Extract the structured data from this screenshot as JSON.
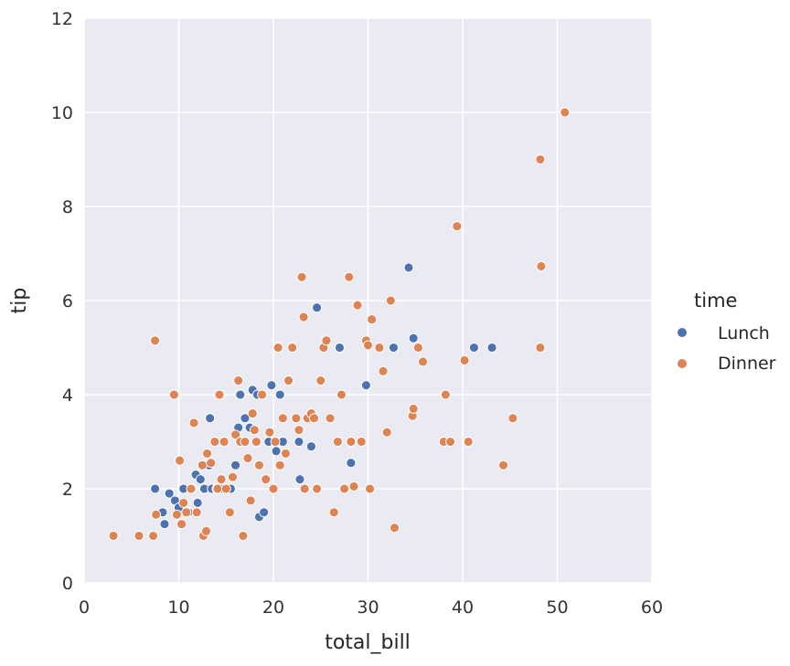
{
  "chart_data": {
    "type": "scatter",
    "xlabel": "total_bill",
    "ylabel": "tip",
    "xlim": [
      0,
      60
    ],
    "ylim": [
      0,
      12
    ],
    "xticks": [
      "0",
      "10",
      "20",
      "30",
      "40",
      "50",
      "60"
    ],
    "yticks": [
      "0",
      "2",
      "4",
      "6",
      "8",
      "10",
      "12"
    ],
    "grid": true,
    "legend": {
      "title": "time",
      "placement": "right",
      "entries": [
        "Lunch",
        "Dinner"
      ]
    },
    "colors": {
      "Lunch": "#4c72b0",
      "Dinner": "#dd8452",
      "plot_background": "#eaeaf2",
      "grid": "#ffffff"
    },
    "series": [
      {
        "name": "Lunch",
        "points": [
          [
            7.5,
            2.0
          ],
          [
            8.3,
            1.5
          ],
          [
            8.5,
            1.25
          ],
          [
            9.0,
            1.9
          ],
          [
            9.6,
            1.75
          ],
          [
            10.0,
            1.6
          ],
          [
            10.5,
            2.0
          ],
          [
            11.0,
            1.5
          ],
          [
            11.4,
            2.0
          ],
          [
            11.8,
            2.3
          ],
          [
            12.0,
            1.7
          ],
          [
            12.3,
            2.2
          ],
          [
            12.7,
            2.0
          ],
          [
            13.2,
            2.5
          ],
          [
            13.3,
            3.5
          ],
          [
            13.5,
            2.0
          ],
          [
            14.0,
            2.0
          ],
          [
            14.7,
            2.0
          ],
          [
            15.5,
            2.0
          ],
          [
            16.0,
            2.5
          ],
          [
            16.3,
            3.3
          ],
          [
            16.5,
            4.0
          ],
          [
            17.0,
            3.5
          ],
          [
            17.5,
            3.3
          ],
          [
            17.8,
            4.1
          ],
          [
            18.3,
            4.0
          ],
          [
            18.5,
            1.4
          ],
          [
            19.0,
            1.5
          ],
          [
            19.5,
            3.0
          ],
          [
            19.8,
            4.2
          ],
          [
            20.3,
            2.8
          ],
          [
            20.7,
            4.0
          ],
          [
            21.0,
            3.0
          ],
          [
            22.7,
            3.0
          ],
          [
            22.8,
            2.2
          ],
          [
            24.0,
            2.9
          ],
          [
            24.6,
            5.85
          ],
          [
            27.0,
            5.0
          ],
          [
            28.2,
            2.55
          ],
          [
            29.8,
            4.2
          ],
          [
            32.7,
            5.0
          ],
          [
            34.3,
            6.7
          ],
          [
            34.8,
            5.2
          ],
          [
            41.2,
            5.0
          ],
          [
            43.1,
            5.0
          ]
        ]
      },
      {
        "name": "Dinner",
        "points": [
          [
            3.1,
            1.0
          ],
          [
            5.8,
            1.0
          ],
          [
            7.3,
            1.0
          ],
          [
            7.5,
            5.15
          ],
          [
            7.6,
            1.45
          ],
          [
            9.5,
            4.0
          ],
          [
            9.8,
            1.45
          ],
          [
            10.1,
            2.6
          ],
          [
            10.3,
            1.25
          ],
          [
            10.5,
            1.7
          ],
          [
            10.8,
            1.5
          ],
          [
            11.3,
            2.0
          ],
          [
            11.6,
            3.4
          ],
          [
            11.9,
            1.5
          ],
          [
            12.5,
            2.5
          ],
          [
            12.6,
            1.0
          ],
          [
            12.9,
            1.1
          ],
          [
            13.0,
            2.75
          ],
          [
            13.4,
            2.55
          ],
          [
            13.8,
            3.0
          ],
          [
            14.1,
            2.0
          ],
          [
            14.3,
            4.0
          ],
          [
            14.5,
            2.2
          ],
          [
            14.8,
            3.0
          ],
          [
            15.0,
            2.0
          ],
          [
            15.4,
            1.5
          ],
          [
            15.7,
            2.25
          ],
          [
            16.0,
            3.15
          ],
          [
            16.3,
            4.3
          ],
          [
            16.5,
            3.0
          ],
          [
            16.8,
            1.0
          ],
          [
            17.0,
            3.0
          ],
          [
            17.3,
            2.65
          ],
          [
            17.6,
            1.75
          ],
          [
            17.8,
            3.6
          ],
          [
            18.0,
            3.25
          ],
          [
            18.2,
            3.0
          ],
          [
            18.5,
            2.5
          ],
          [
            18.8,
            4.0
          ],
          [
            19.2,
            2.2
          ],
          [
            19.6,
            3.2
          ],
          [
            20.0,
            2.0
          ],
          [
            20.2,
            3.0
          ],
          [
            20.5,
            5.0
          ],
          [
            20.7,
            2.5
          ],
          [
            21.0,
            3.5
          ],
          [
            21.3,
            2.75
          ],
          [
            21.6,
            4.3
          ],
          [
            22.0,
            5.0
          ],
          [
            22.4,
            3.5
          ],
          [
            22.7,
            3.25
          ],
          [
            23.0,
            6.5
          ],
          [
            23.2,
            5.65
          ],
          [
            23.3,
            2.0
          ],
          [
            23.6,
            3.5
          ],
          [
            24.0,
            3.6
          ],
          [
            24.3,
            3.5
          ],
          [
            24.6,
            2.0
          ],
          [
            25.0,
            4.3
          ],
          [
            25.3,
            5.0
          ],
          [
            25.6,
            5.15
          ],
          [
            26.0,
            3.5
          ],
          [
            26.4,
            1.5
          ],
          [
            26.8,
            3.0
          ],
          [
            27.2,
            4.0
          ],
          [
            27.5,
            2.0
          ],
          [
            28.0,
            6.5
          ],
          [
            28.2,
            3.0
          ],
          [
            28.5,
            2.05
          ],
          [
            28.9,
            5.9
          ],
          [
            29.3,
            3.0
          ],
          [
            29.8,
            5.15
          ],
          [
            30.0,
            5.05
          ],
          [
            30.2,
            2.0
          ],
          [
            30.4,
            5.6
          ],
          [
            31.2,
            5.0
          ],
          [
            31.6,
            4.5
          ],
          [
            32.0,
            3.2
          ],
          [
            32.4,
            6.0
          ],
          [
            32.8,
            1.17
          ],
          [
            34.7,
            3.55
          ],
          [
            34.8,
            3.7
          ],
          [
            35.3,
            5.0
          ],
          [
            35.8,
            4.7
          ],
          [
            38.0,
            3.0
          ],
          [
            38.2,
            4.0
          ],
          [
            38.7,
            3.0
          ],
          [
            39.4,
            7.58
          ],
          [
            40.2,
            4.73
          ],
          [
            40.6,
            3.0
          ],
          [
            44.3,
            2.5
          ],
          [
            45.3,
            3.5
          ],
          [
            48.2,
            9.0
          ],
          [
            48.3,
            6.73
          ],
          [
            48.2,
            5.0
          ],
          [
            50.8,
            10.0
          ]
        ]
      }
    ]
  }
}
